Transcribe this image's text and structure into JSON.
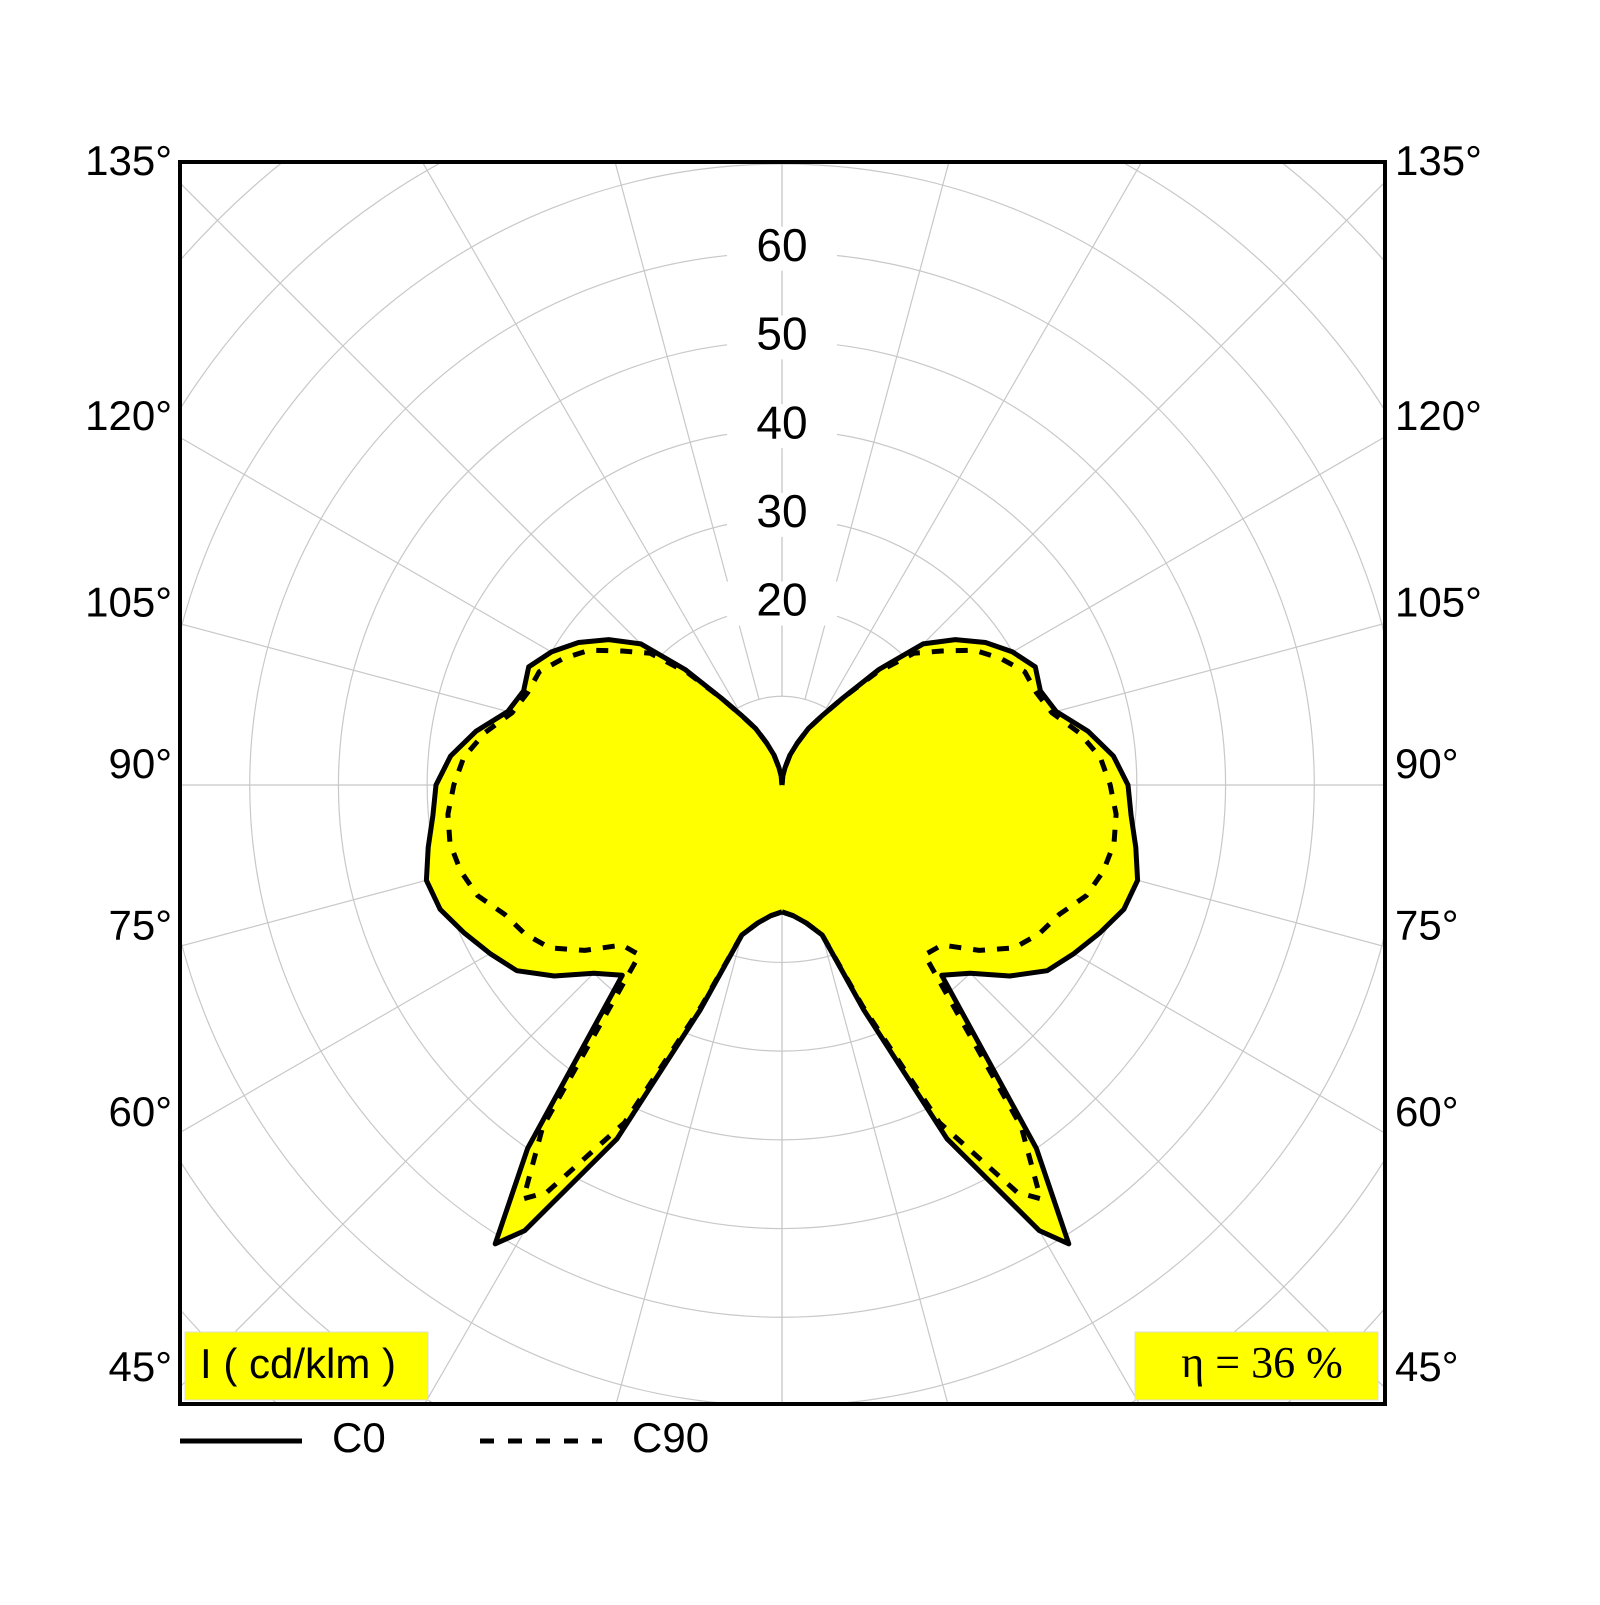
{
  "chart_data": {
    "type": "polar",
    "unit_label": "I ( cd/klm )",
    "efficiency_label": "η = 36 %",
    "fill_color": "#ffff00",
    "grid": true,
    "x": [
      0,
      5,
      10,
      15,
      20,
      25,
      30,
      32,
      35,
      40,
      45,
      50,
      55,
      60,
      65,
      70,
      75,
      80,
      85,
      90,
      95,
      100,
      105,
      110,
      115,
      120,
      125,
      130,
      135,
      140,
      145,
      150,
      155,
      160,
      165,
      170,
      175,
      180
    ],
    "series": [
      {
        "name": "C0",
        "color": "#000000",
        "line_style": "solid",
        "values": [
          14.3,
          14.8,
          15.8,
          17.5,
          27,
          44,
          58,
          61,
          50,
          28,
          30,
          33.5,
          36.5,
          38,
          39.5,
          41,
          41.5,
          40.5,
          39.5,
          39,
          37.5,
          35,
          32,
          31,
          31.5,
          30,
          28,
          25.5,
          22.5,
          17,
          12,
          9,
          7,
          5,
          3.5,
          2,
          1,
          0
        ]
      },
      {
        "name": "C90",
        "color": "#000000",
        "line_style": "dashed",
        "values": [
          14.3,
          14.8,
          15.8,
          17.5,
          26.5,
          42,
          53,
          55,
          47,
          25,
          25.5,
          29,
          32,
          33.5,
          34.5,
          36.5,
          37.5,
          38,
          37.8,
          37,
          36,
          34,
          31.5,
          30.5,
          30.2,
          28.5,
          26.5,
          23.5,
          21,
          16.5,
          12,
          9,
          7,
          5,
          3.5,
          2,
          1,
          0
        ]
      }
    ],
    "rlim": [
      0,
      70
    ],
    "rticks": [
      {
        "value": 10,
        "label": null
      },
      20,
      30,
      40,
      50,
      60,
      {
        "value": 70,
        "label": null
      },
      {
        "value": 80,
        "label": null
      },
      {
        "value": 90,
        "label": null
      },
      {
        "value": 100,
        "label": null
      }
    ],
    "angle_ticks": [
      {
        "value": 0,
        "label": null
      },
      {
        "value": 15,
        "label": null
      },
      {
        "value": 30,
        "label": null
      },
      {
        "value": 45,
        "label": "45°"
      },
      {
        "value": 60,
        "label": "60°"
      },
      {
        "value": 75,
        "label": "75°"
      },
      {
        "value": 90,
        "label": "90°"
      },
      {
        "value": 105,
        "label": "105°"
      },
      {
        "value": 120,
        "label": "120°"
      },
      {
        "value": 135,
        "label": "135°"
      },
      {
        "value": 150,
        "label": null
      },
      {
        "value": 165,
        "label": null
      },
      {
        "value": 180,
        "label": null
      }
    ]
  }
}
